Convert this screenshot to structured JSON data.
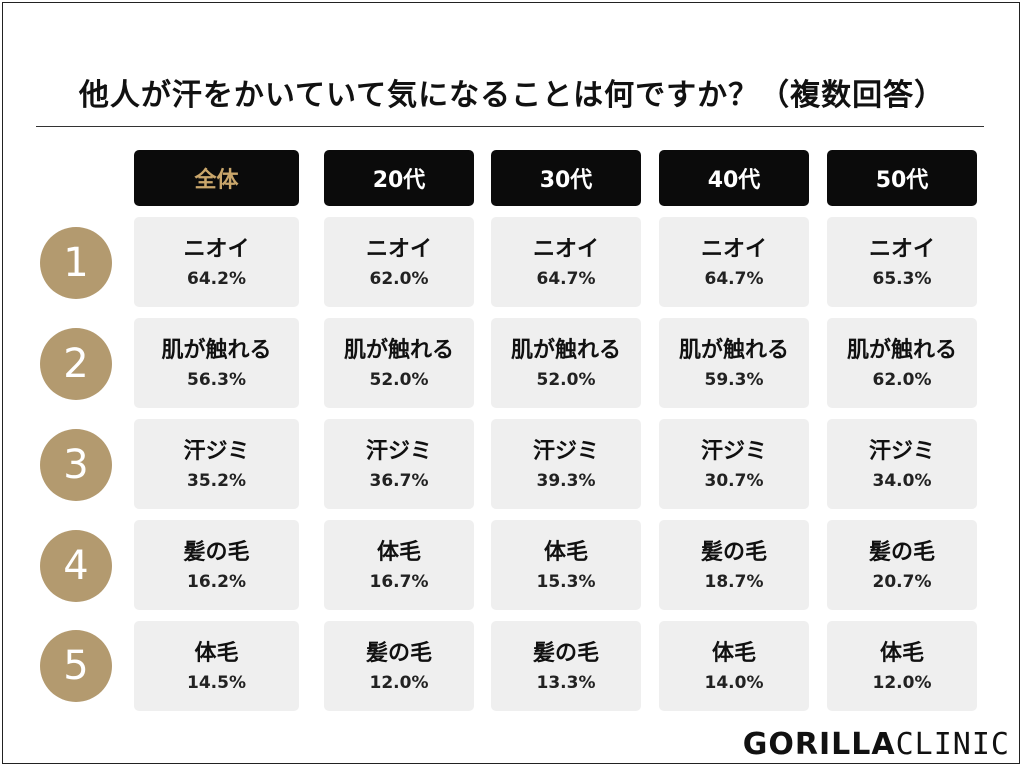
{
  "title": "他人が汗をかいていて気になることは何ですか？（複数回答）",
  "logo": {
    "part1": "GORILLA",
    "part2": "CLINIC"
  },
  "chart_data": {
    "type": "table",
    "title": "他人が汗をかいていて気になることは何ですか？（複数回答）",
    "columns": [
      "全体",
      "20代",
      "30代",
      "40代",
      "50代"
    ],
    "ranks": [
      "1",
      "2",
      "3",
      "4",
      "5"
    ],
    "rows": [
      [
        {
          "label": "ニオイ",
          "value": "64.2%"
        },
        {
          "label": "ニオイ",
          "value": "62.0%"
        },
        {
          "label": "ニオイ",
          "value": "64.7%"
        },
        {
          "label": "ニオイ",
          "value": "64.7%"
        },
        {
          "label": "ニオイ",
          "value": "65.3%"
        }
      ],
      [
        {
          "label": "肌が触れる",
          "value": "56.3%"
        },
        {
          "label": "肌が触れる",
          "value": "52.0%"
        },
        {
          "label": "肌が触れる",
          "value": "52.0%"
        },
        {
          "label": "肌が触れる",
          "value": "59.3%"
        },
        {
          "label": "肌が触れる",
          "value": "62.0%"
        }
      ],
      [
        {
          "label": "汗ジミ",
          "value": "35.2%"
        },
        {
          "label": "汗ジミ",
          "value": "36.7%"
        },
        {
          "label": "汗ジミ",
          "value": "39.3%"
        },
        {
          "label": "汗ジミ",
          "value": "30.7%"
        },
        {
          "label": "汗ジミ",
          "value": "34.0%"
        }
      ],
      [
        {
          "label": "髪の毛",
          "value": "16.2%"
        },
        {
          "label": "体毛",
          "value": "16.7%"
        },
        {
          "label": "体毛",
          "value": "15.3%"
        },
        {
          "label": "髪の毛",
          "value": "18.7%"
        },
        {
          "label": "髪の毛",
          "value": "20.7%"
        }
      ],
      [
        {
          "label": "体毛",
          "value": "14.5%"
        },
        {
          "label": "髪の毛",
          "value": "12.0%"
        },
        {
          "label": "髪の毛",
          "value": "13.3%"
        },
        {
          "label": "体毛",
          "value": "14.0%"
        },
        {
          "label": "体毛",
          "value": "12.0%"
        }
      ]
    ]
  },
  "colors": {
    "header_bg": "#0b0b0b",
    "header_overall_text": "#c9a66b",
    "header_text": "#ffffff",
    "rank_circle": "#b39a6f",
    "cell_bg": "#efefef"
  }
}
